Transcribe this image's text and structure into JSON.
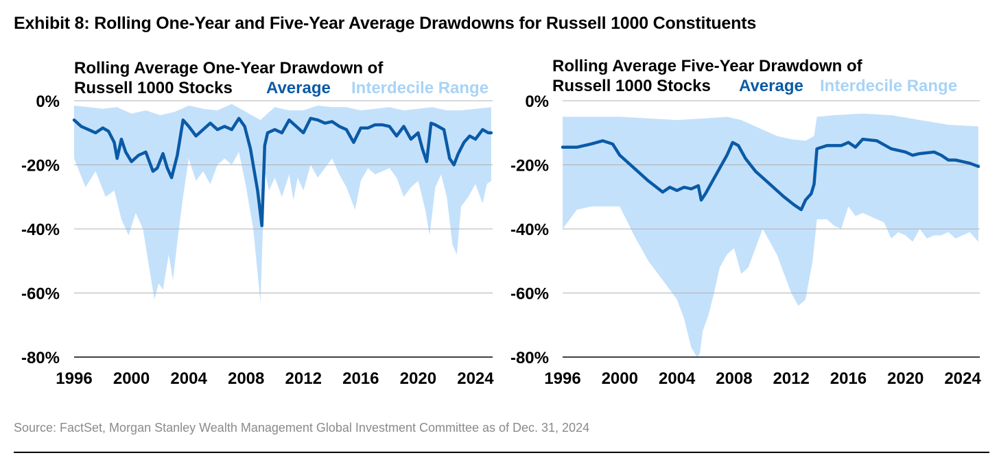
{
  "exhibit_title": "Exhibit 8: Rolling One-Year and Five-Year Average Drawdowns for Russell 1000 Constituents",
  "source": "Source: FactSet, Morgan Stanley Wealth Management Global Investment Committee as of Dec. 31, 2024",
  "colors": {
    "average": "#0a5aa6",
    "range": "#c4e1fb",
    "range_legend": "#a9d3f6",
    "grid": "#b0b0b0"
  },
  "chart_data": [
    {
      "type": "area",
      "title_lines": [
        "Rolling Average One-Year Drawdown of",
        "Russell 1000 Stocks"
      ],
      "legend": [
        "Average",
        "Interdecile Range"
      ],
      "xlim": [
        1996,
        2025.2
      ],
      "ylim": [
        -80,
        0
      ],
      "x_ticks": [
        "1996",
        "2000",
        "2004",
        "2008",
        "2012",
        "2016",
        "2020",
        "2024"
      ],
      "y_ticks": [
        "0%",
        "-20%",
        "-40%",
        "-60%",
        "-80%"
      ],
      "grid": true,
      "series": [
        {
          "name": "Average",
          "kind": "line",
          "x": [
            1996,
            1996.5,
            1997,
            1997.5,
            1998,
            1998.4,
            1998.8,
            1999,
            1999.3,
            1999.6,
            2000,
            2000.5,
            2001,
            2001.5,
            2001.8,
            2002.2,
            2002.5,
            2002.8,
            2003.2,
            2003.6,
            2004,
            2004.5,
            2005,
            2005.5,
            2006,
            2006.5,
            2007,
            2007.5,
            2007.9,
            2008.3,
            2008.8,
            2009.1,
            2009.3,
            2009.5,
            2010,
            2010.5,
            2011,
            2011.5,
            2012,
            2012.5,
            2013,
            2013.5,
            2014,
            2014.5,
            2015,
            2015.5,
            2016,
            2016.5,
            2017,
            2017.5,
            2018,
            2018.5,
            2019,
            2019.5,
            2020,
            2020.3,
            2020.6,
            2020.9,
            2021.2,
            2021.8,
            2022.2,
            2022.5,
            2022.8,
            2023.2,
            2023.6,
            2024,
            2024.5,
            2024.9,
            2025.1
          ],
          "values": [
            -6,
            -8,
            -9,
            -10,
            -8.5,
            -9.5,
            -13,
            -18,
            -12,
            -16,
            -19,
            -17,
            -16,
            -22,
            -21,
            -16.5,
            -21,
            -24,
            -17,
            -6,
            -8,
            -11,
            -9,
            -7,
            -9,
            -8,
            -9,
            -5.5,
            -8,
            -15,
            -28,
            -39,
            -14,
            -10,
            -9,
            -10,
            -6,
            -8,
            -10,
            -5.5,
            -6,
            -7,
            -6.5,
            -8,
            -9,
            -13,
            -8.5,
            -8.5,
            -7.5,
            -7.5,
            -8,
            -11,
            -8,
            -12,
            -10,
            -15,
            -19,
            -7,
            -7.5,
            -9,
            -18,
            -20,
            -16.5,
            -13,
            -11,
            -12,
            -9,
            -10,
            -10
          ]
        },
        {
          "name": "Interdecile Range",
          "kind": "band_top",
          "x": [
            1996,
            1997,
            1998,
            1999,
            2000,
            2001,
            2002,
            2003,
            2004,
            2005,
            2006,
            2007,
            2008,
            2009,
            2010,
            2011,
            2012,
            2013,
            2014,
            2015,
            2016,
            2017,
            2018,
            2019,
            2020,
            2021,
            2022,
            2023,
            2024,
            2025.1
          ],
          "values": [
            -1.5,
            -2,
            -2.5,
            -2,
            -4,
            -3,
            -4.5,
            -3.5,
            -1.5,
            -2.5,
            -3,
            -1,
            -3.5,
            -6,
            -2,
            -3,
            -3,
            -1.5,
            -2,
            -2,
            -3,
            -2.5,
            -2,
            -3,
            -2.5,
            -2,
            -3,
            -3,
            -2.5,
            -2
          ]
        },
        {
          "name": "Interdecile Range",
          "kind": "band_bottom",
          "x": [
            1996,
            1996.8,
            1997.5,
            1998.2,
            1998.8,
            1999.3,
            1999.8,
            2000.3,
            2000.8,
            2001.2,
            2001.6,
            2001.9,
            2002.2,
            2002.6,
            2002.9,
            2003.2,
            2003.6,
            2004,
            2004.5,
            2005,
            2005.5,
            2006,
            2006.5,
            2007,
            2007.5,
            2008,
            2008.5,
            2009,
            2009.3,
            2009.6,
            2010,
            2010.5,
            2011,
            2011.3,
            2011.6,
            2012,
            2012.5,
            2013,
            2013.5,
            2014,
            2014.5,
            2015,
            2015.6,
            2016,
            2016.5,
            2017,
            2017.5,
            2018,
            2018.5,
            2019,
            2019.5,
            2020,
            2020.5,
            2020.8,
            2021.2,
            2021.6,
            2022,
            2022.4,
            2022.7,
            2023,
            2023.5,
            2024,
            2024.5,
            2024.8,
            2025.1
          ],
          "values": [
            -18,
            -27,
            -22,
            -30,
            -28,
            -37,
            -42,
            -35,
            -40,
            -51,
            -62,
            -57,
            -59,
            -48,
            -56,
            -44,
            -30,
            -18,
            -25,
            -22,
            -26,
            -20,
            -18,
            -20,
            -16,
            -27,
            -40,
            -63,
            -22,
            -28,
            -24,
            -30,
            -23,
            -31,
            -24,
            -28,
            -20,
            -24,
            -21,
            -18,
            -23,
            -27,
            -34,
            -25,
            -21,
            -23,
            -22,
            -21,
            -24,
            -30,
            -27,
            -25,
            -34,
            -42,
            -27,
            -23,
            -30,
            -45,
            -48,
            -33,
            -30,
            -26,
            -32,
            -26,
            -25
          ]
        }
      ]
    },
    {
      "type": "area",
      "title_lines": [
        "Rolling Average Five-Year Drawdown of",
        "Russell 1000 Stocks"
      ],
      "legend": [
        "Average",
        "Interdecile Range"
      ],
      "xlim": [
        1996,
        2025.2
      ],
      "ylim": [
        -80,
        0
      ],
      "x_ticks": [
        "1996",
        "2000",
        "2004",
        "2008",
        "2012",
        "2016",
        "2020",
        "2024"
      ],
      "y_ticks": [
        "0%",
        "-20%",
        "-40%",
        "-60%",
        "-80%"
      ],
      "grid": true,
      "series": [
        {
          "name": "Average",
          "kind": "line",
          "x": [
            1996,
            1997,
            1998,
            1998.8,
            1999.5,
            2000,
            2001,
            2002,
            2003,
            2003.5,
            2004,
            2004.5,
            2005,
            2005.5,
            2005.7,
            2006,
            2006.5,
            2007,
            2007.5,
            2007.9,
            2008.3,
            2008.8,
            2009.5,
            2010.5,
            2011.5,
            2012.2,
            2012.7,
            2013,
            2013.4,
            2013.6,
            2013.8,
            2014.5,
            2015,
            2015.5,
            2016,
            2016.5,
            2017,
            2018,
            2019,
            2020,
            2020.5,
            2021,
            2022,
            2022.5,
            2023,
            2023.5,
            2024,
            2024.5,
            2025.1
          ],
          "values": [
            -14.5,
            -14.5,
            -13.5,
            -12.5,
            -13.5,
            -17,
            -21,
            -25,
            -28.5,
            -27,
            -28,
            -27,
            -27.5,
            -26.5,
            -31,
            -29,
            -25,
            -21,
            -17,
            -13,
            -14,
            -18,
            -22,
            -26,
            -30,
            -32.5,
            -34,
            -31,
            -29,
            -26,
            -15,
            -14,
            -14,
            -14,
            -13,
            -14.5,
            -12,
            -12.5,
            -15,
            -16,
            -17,
            -16.5,
            -16,
            -17,
            -18.5,
            -18.5,
            -19,
            -19.5,
            -20.5
          ]
        },
        {
          "name": "Interdecile Range",
          "kind": "band_top",
          "x": [
            1996,
            1998,
            2000,
            2002,
            2004,
            2006,
            2007.5,
            2008.5,
            2010,
            2011,
            2012,
            2013,
            2013.6,
            2013.8,
            2015,
            2017,
            2019,
            2021,
            2023,
            2025.1
          ],
          "values": [
            -5,
            -5,
            -5,
            -5.5,
            -6,
            -5.5,
            -5,
            -6,
            -9,
            -11,
            -12,
            -12.5,
            -11,
            -5,
            -4.5,
            -4,
            -4.5,
            -6,
            -7.5,
            -8
          ]
        },
        {
          "name": "Interdecile Range",
          "kind": "band_bottom",
          "x": [
            1996,
            1997,
            1998,
            1999,
            2000,
            2001,
            2002,
            2003,
            2004,
            2004.5,
            2005,
            2005.4,
            2005.6,
            2005.8,
            2006.2,
            2006.6,
            2007,
            2007.5,
            2008,
            2008.5,
            2009,
            2010,
            2011,
            2011.5,
            2012,
            2012.5,
            2013,
            2013.5,
            2013.8,
            2014.5,
            2015,
            2015.5,
            2016,
            2016.5,
            2017,
            2017.5,
            2018,
            2018.5,
            2019,
            2019.5,
            2020,
            2020.5,
            2021,
            2021.5,
            2022,
            2022.5,
            2023,
            2023.5,
            2024,
            2024.5,
            2025.1
          ],
          "values": [
            -40,
            -34,
            -33,
            -33,
            -33,
            -42,
            -50,
            -56,
            -62,
            -68,
            -77,
            -80,
            -79,
            -72,
            -67,
            -60,
            -52,
            -48,
            -46,
            -54,
            -52,
            -40,
            -48,
            -54,
            -60,
            -64,
            -62,
            -50,
            -37,
            -37,
            -39,
            -40,
            -33,
            -36,
            -35,
            -36,
            -37,
            -38,
            -43,
            -41,
            -42,
            -44,
            -40,
            -43,
            -42,
            -42,
            -41,
            -43,
            -42,
            -41,
            -44
          ]
        }
      ]
    }
  ]
}
